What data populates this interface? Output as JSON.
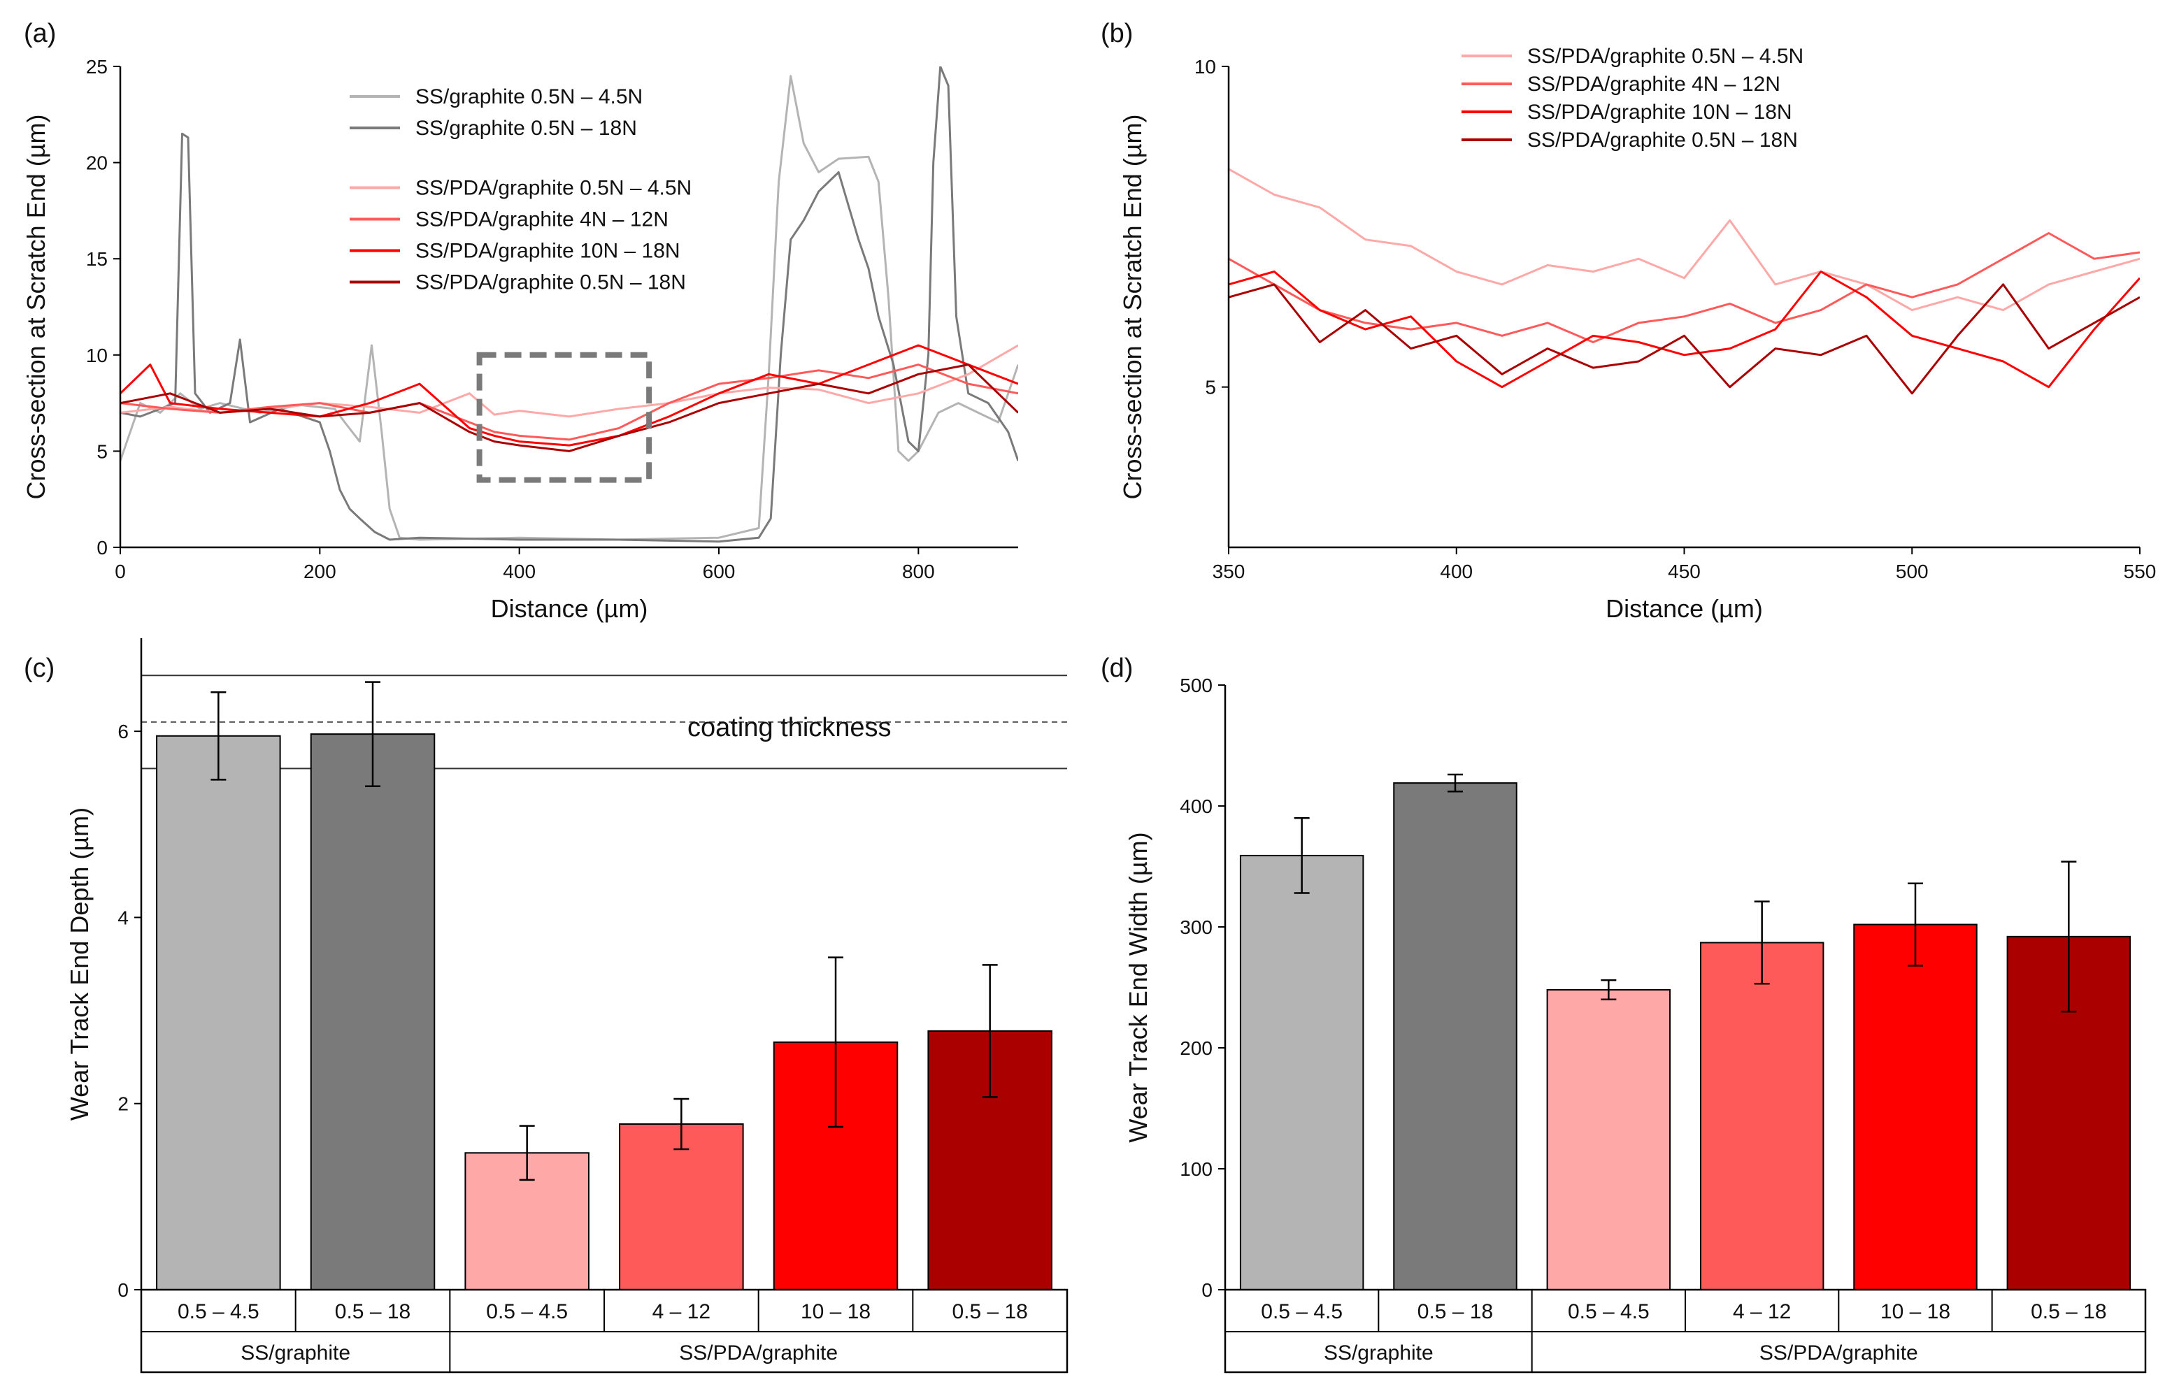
{
  "panels": {
    "a": "(a)",
    "b": "(b)",
    "c": "(c)",
    "d": "(d)"
  },
  "colors": {
    "ss_light": "#b4b4b4",
    "ss_dark": "#7a7a7a",
    "pda_1": "#ffa8a8",
    "pda_2": "#ff5a5a",
    "pda_3": "#ff0000",
    "pda_4": "#aa0000"
  },
  "chart_data": [
    {
      "id": "a",
      "type": "line",
      "xlabel": "Distance (µm)",
      "ylabel": "Cross-section at Scratch End (µm)",
      "xlim": [
        0,
        900
      ],
      "ylim": [
        0,
        25
      ],
      "xticks": [
        0,
        200,
        400,
        600,
        800
      ],
      "yticks": [
        0,
        5,
        10,
        15,
        20,
        25
      ],
      "legend_position": "top-center",
      "series": [
        {
          "name": "SS/graphite 0.5N – 4.5N",
          "color": "#b4b4b4",
          "x": [
            0,
            20,
            40,
            60,
            80,
            100,
            140,
            180,
            215,
            225,
            240,
            252,
            262,
            270,
            280,
            300,
            400,
            500,
            600,
            640,
            650,
            660,
            672,
            685,
            700,
            720,
            750,
            760,
            770,
            780,
            790,
            800,
            820,
            840,
            860,
            880,
            900
          ],
          "y": [
            4.5,
            7.5,
            7.0,
            8.0,
            7.2,
            7.5,
            7.0,
            7.4,
            7.2,
            6.5,
            5.5,
            10.5,
            6.0,
            2.0,
            0.5,
            0.4,
            0.5,
            0.4,
            0.5,
            1.0,
            9.0,
            19.0,
            24.5,
            21.0,
            19.5,
            20.2,
            20.3,
            19.0,
            13.0,
            5.0,
            4.5,
            5.0,
            7.0,
            7.5,
            7.0,
            6.5,
            9.5
          ]
        },
        {
          "name": "SS/graphite 0.5N – 18N",
          "color": "#7a7a7a",
          "x": [
            0,
            20,
            40,
            55,
            62,
            68,
            75,
            90,
            110,
            120,
            130,
            160,
            200,
            210,
            220,
            230,
            240,
            255,
            270,
            300,
            400,
            500,
            600,
            640,
            652,
            662,
            672,
            685,
            700,
            720,
            740,
            750,
            760,
            775,
            790,
            800,
            810,
            815,
            822,
            830,
            838,
            850,
            870,
            890,
            900
          ],
          "y": [
            7.0,
            6.8,
            7.2,
            7.5,
            21.5,
            21.3,
            8.0,
            7.0,
            7.5,
            10.8,
            6.5,
            7.2,
            6.5,
            5.0,
            3.0,
            2.0,
            1.5,
            0.8,
            0.4,
            0.5,
            0.4,
            0.4,
            0.3,
            0.5,
            1.5,
            10.0,
            16.0,
            17.0,
            18.5,
            19.5,
            16.0,
            14.5,
            12.0,
            9.5,
            5.5,
            5.0,
            10.0,
            20.0,
            25.0,
            24.0,
            12.0,
            8.0,
            7.5,
            6.0,
            4.5
          ]
        },
        {
          "name": "SS/PDA/graphite 0.5N – 4.5N",
          "color": "#ffa8a8",
          "x": [
            0,
            50,
            100,
            150,
            200,
            250,
            300,
            350,
            375,
            400,
            450,
            500,
            550,
            600,
            650,
            700,
            750,
            800,
            850,
            900
          ],
          "y": [
            7.0,
            7.3,
            7.0,
            7.2,
            7.5,
            7.3,
            7.0,
            8.0,
            6.9,
            7.1,
            6.8,
            7.2,
            7.5,
            8.0,
            8.3,
            8.2,
            7.5,
            8.0,
            9.0,
            10.5
          ]
        },
        {
          "name": "SS/PDA/graphite 4N – 12N",
          "color": "#ff5a5a",
          "x": [
            0,
            50,
            100,
            150,
            200,
            250,
            300,
            350,
            375,
            400,
            450,
            500,
            550,
            600,
            650,
            700,
            750,
            800,
            850,
            900
          ],
          "y": [
            7.5,
            7.2,
            7.0,
            7.3,
            7.5,
            7.0,
            7.5,
            6.5,
            6.0,
            5.8,
            5.6,
            6.2,
            7.5,
            8.5,
            8.8,
            9.2,
            8.8,
            9.5,
            8.5,
            8.0
          ]
        },
        {
          "name": "SS/PDA/graphite 10N – 18N",
          "color": "#ff0000",
          "x": [
            0,
            30,
            50,
            100,
            150,
            200,
            250,
            300,
            350,
            375,
            400,
            450,
            500,
            550,
            600,
            650,
            700,
            750,
            800,
            850,
            900
          ],
          "y": [
            8.0,
            9.5,
            7.5,
            7.2,
            7.0,
            6.8,
            7.5,
            8.5,
            6.2,
            5.8,
            5.5,
            5.3,
            5.8,
            6.8,
            8.0,
            9.0,
            8.5,
            9.5,
            10.5,
            9.5,
            8.5
          ]
        },
        {
          "name": "SS/PDA/graphite 0.5N – 18N",
          "color": "#aa0000",
          "x": [
            0,
            50,
            100,
            150,
            200,
            250,
            300,
            350,
            375,
            400,
            450,
            500,
            550,
            600,
            650,
            700,
            750,
            800,
            850,
            900
          ],
          "y": [
            7.5,
            8.0,
            7.0,
            7.2,
            6.8,
            7.0,
            7.5,
            6.0,
            5.5,
            5.3,
            5.0,
            5.8,
            6.5,
            7.5,
            8.0,
            8.5,
            8.0,
            9.0,
            9.5,
            7.0
          ]
        }
      ],
      "highlight_box": {
        "x": [
          360,
          530
        ],
        "y": [
          3.5,
          10.0
        ]
      }
    },
    {
      "id": "b",
      "type": "line",
      "xlabel": "Distance (µm)",
      "ylabel": "Cross-section at Scratch End (µm)",
      "xlim": [
        350,
        550
      ],
      "ylim": [
        2.5,
        10
      ],
      "xticks": [
        350,
        400,
        450,
        500,
        550
      ],
      "yticks": [
        5,
        10
      ],
      "legend_position": "top-center",
      "series": [
        {
          "name": "SS/PDA/graphite 0.5N – 4.5N",
          "color": "#ffa8a8",
          "x": [
            350,
            360,
            370,
            380,
            390,
            400,
            410,
            420,
            430,
            440,
            450,
            460,
            470,
            480,
            490,
            500,
            510,
            520,
            530,
            540,
            550
          ],
          "y": [
            8.4,
            8.0,
            7.8,
            7.3,
            7.2,
            6.8,
            6.6,
            6.9,
            6.8,
            7.0,
            6.7,
            7.6,
            6.6,
            6.8,
            6.6,
            6.2,
            6.4,
            6.2,
            6.6,
            6.8,
            7.0
          ]
        },
        {
          "name": "SS/PDA/graphite 4N – 12N",
          "color": "#ff5a5a",
          "x": [
            350,
            360,
            370,
            380,
            390,
            400,
            410,
            420,
            430,
            440,
            450,
            460,
            470,
            480,
            490,
            500,
            510,
            520,
            530,
            540,
            550
          ],
          "y": [
            7.0,
            6.6,
            6.2,
            6.0,
            5.9,
            6.0,
            5.8,
            6.0,
            5.7,
            6.0,
            6.1,
            6.3,
            6.0,
            6.2,
            6.6,
            6.4,
            6.6,
            7.0,
            7.4,
            7.0,
            7.1
          ]
        },
        {
          "name": "SS/PDA/graphite 10N – 18N",
          "color": "#ff0000",
          "x": [
            350,
            360,
            370,
            380,
            390,
            400,
            410,
            420,
            430,
            440,
            450,
            460,
            470,
            480,
            490,
            500,
            510,
            520,
            530,
            540,
            550
          ],
          "y": [
            6.6,
            6.8,
            6.2,
            5.9,
            6.1,
            5.4,
            5.0,
            5.4,
            5.8,
            5.7,
            5.5,
            5.6,
            5.9,
            6.8,
            6.4,
            5.8,
            5.6,
            5.4,
            5.0,
            5.9,
            6.7
          ]
        },
        {
          "name": "SS/PDA/graphite 0.5N – 18N",
          "color": "#aa0000",
          "x": [
            350,
            360,
            370,
            380,
            390,
            400,
            410,
            420,
            430,
            440,
            450,
            460,
            470,
            480,
            490,
            500,
            510,
            520,
            530,
            540,
            550
          ],
          "y": [
            6.4,
            6.6,
            5.7,
            6.2,
            5.6,
            5.8,
            5.2,
            5.6,
            5.3,
            5.4,
            5.8,
            5.0,
            5.6,
            5.5,
            5.8,
            4.9,
            5.8,
            6.6,
            5.6,
            6.0,
            6.4
          ]
        }
      ]
    },
    {
      "id": "c",
      "type": "bar",
      "ylabel": "Wear Track End Depth (µm)",
      "ylim": [
        0,
        7
      ],
      "yticks": [
        0,
        2,
        4,
        6
      ],
      "categories": [
        "0.5 – 4.5",
        "0.5 – 18",
        "0.5 – 4.5",
        "4 – 12",
        "10 – 18",
        "0.5 – 18"
      ],
      "groups": [
        {
          "label": "SS/graphite",
          "span": 2
        },
        {
          "label": "SS/PDA/graphite",
          "span": 4
        }
      ],
      "values": [
        5.95,
        5.97,
        1.47,
        1.78,
        2.66,
        2.78
      ],
      "errors": [
        0.47,
        0.56,
        0.29,
        0.27,
        0.91,
        0.71
      ],
      "colors": [
        "#b4b4b4",
        "#7a7a7a",
        "#ffa8a8",
        "#ff5a5a",
        "#ff0000",
        "#aa0000"
      ],
      "reference_lines": {
        "coating_thickness": 6.1,
        "upper": 6.6,
        "lower": 5.6
      },
      "annotation": "coating thickness"
    },
    {
      "id": "d",
      "type": "bar",
      "ylabel": "Wear Track End Width (µm)",
      "ylim": [
        0,
        500
      ],
      "yticks": [
        0,
        100,
        200,
        300,
        400,
        500
      ],
      "categories": [
        "0.5 – 4.5",
        "0.5 – 18",
        "0.5 – 4.5",
        "4 – 12",
        "10 – 18",
        "0.5 – 18"
      ],
      "groups": [
        {
          "label": "SS/graphite",
          "span": 2
        },
        {
          "label": "SS/PDA/graphite",
          "span": 4
        }
      ],
      "values": [
        359,
        419,
        248,
        287,
        302,
        292
      ],
      "errors": [
        31,
        7,
        8,
        34,
        34,
        62
      ],
      "colors": [
        "#b4b4b4",
        "#7a7a7a",
        "#ffa8a8",
        "#ff5a5a",
        "#ff0000",
        "#aa0000"
      ]
    }
  ]
}
